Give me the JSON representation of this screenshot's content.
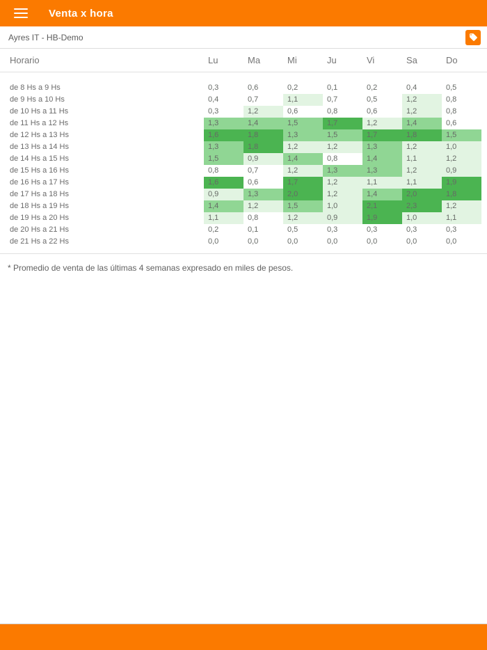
{
  "app_bar": {
    "title": "Venta x hora"
  },
  "store_bar": {
    "store": "Ayres IT - HB-Demo"
  },
  "table": {
    "header": {
      "label": "Horario",
      "days": [
        "Lu",
        "Ma",
        "Mi",
        "Ju",
        "Vi",
        "Sa",
        "Do"
      ]
    },
    "rows": [
      {
        "label": "de 8 Hs a 9 Hs",
        "values": [
          "0,3",
          "0,6",
          "0,2",
          "0,1",
          "0,2",
          "0,4",
          "0,5"
        ]
      },
      {
        "label": "de 9 Hs a 10 Hs",
        "values": [
          "0,4",
          "0,7",
          "1,1",
          "0,7",
          "0,5",
          "1,2",
          "0,8"
        ]
      },
      {
        "label": "de 10 Hs a 11 Hs",
        "values": [
          "0,3",
          "1,2",
          "0,6",
          "0,8",
          "0,6",
          "1,2",
          "0,8"
        ]
      },
      {
        "label": "de 11 Hs a 12 Hs",
        "values": [
          "1,3",
          "1,4",
          "1,5",
          "1,7",
          "1,2",
          "1,4",
          "0,6"
        ]
      },
      {
        "label": "de 12 Hs a 13 Hs",
        "values": [
          "1,6",
          "1,8",
          "1,3",
          "1,5",
          "1,7",
          "1,8",
          "1,5"
        ]
      },
      {
        "label": "de 13 Hs a 14 Hs",
        "values": [
          "1,3",
          "1,8",
          "1,2",
          "1,2",
          "1,3",
          "1,2",
          "1,0"
        ]
      },
      {
        "label": "de 14 Hs a 15 Hs",
        "values": [
          "1,5",
          "0,9",
          "1,4",
          "0,8",
          "1,4",
          "1,1",
          "1,2"
        ]
      },
      {
        "label": "de 15 Hs a 16 Hs",
        "values": [
          "0,8",
          "0,7",
          "1,2",
          "1,3",
          "1,3",
          "1,2",
          "0,9"
        ]
      },
      {
        "label": "de 16 Hs a 17 Hs",
        "values": [
          "1,6",
          "0,6",
          "1,7",
          "1,2",
          "1,1",
          "1,1",
          "1,9"
        ]
      },
      {
        "label": "de 17 Hs a 18 Hs",
        "values": [
          "0,9",
          "1,3",
          "2,0",
          "1,2",
          "1,4",
          "2,0",
          "1,8"
        ]
      },
      {
        "label": "de 18 Hs a 19 Hs",
        "values": [
          "1,4",
          "1,2",
          "1,5",
          "1,0",
          "2,1",
          "2,3",
          "1,2"
        ]
      },
      {
        "label": "de 19 Hs a 20 Hs",
        "values": [
          "1,1",
          "0,8",
          "1,2",
          "0,9",
          "1,9",
          "1,0",
          "1,1"
        ]
      },
      {
        "label": "de 20 Hs a 21 Hs",
        "values": [
          "0,2",
          "0,1",
          "0,5",
          "0,3",
          "0,3",
          "0,3",
          "0,3"
        ]
      },
      {
        "label": "de 21 Hs a 22 Hs",
        "values": [
          "0,0",
          "0,0",
          "0,0",
          "0,0",
          "0,0",
          "0,0",
          "0,0"
        ]
      }
    ]
  },
  "footnote": "* Promedio de venta de las últimas 4 semanas expresado en miles de pesos.",
  "colors": {
    "accent_orange": "#FB7A00",
    "heat_low": "#E2F4E2",
    "heat_mid": "#90D694",
    "heat_high": "#4BB451",
    "divider": "#E0E0E0"
  },
  "heatmap_thresholds": {
    "low_min": 0.9,
    "mid_min": 1.3,
    "high_min": 1.6
  }
}
